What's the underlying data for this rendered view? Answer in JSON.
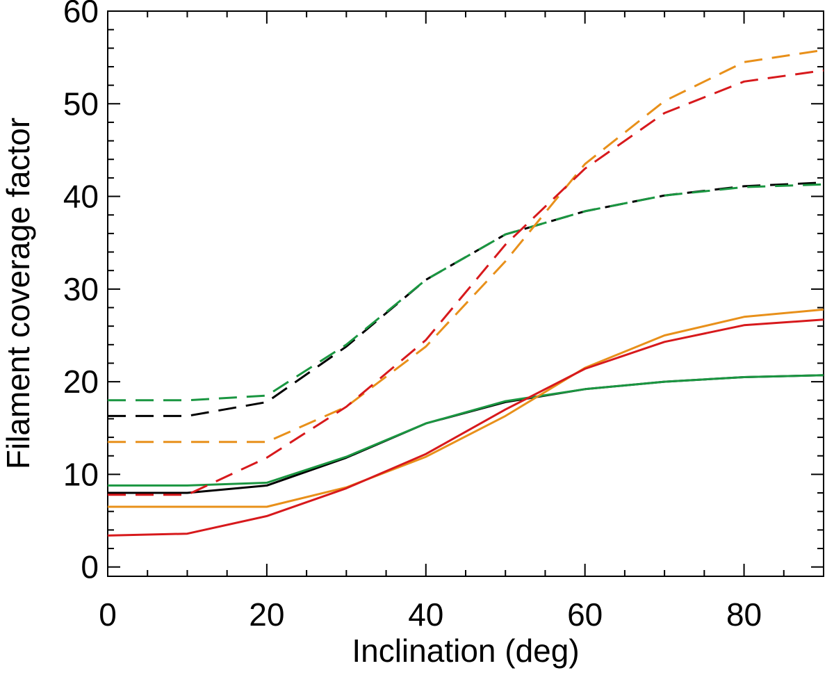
{
  "chart_data": {
    "type": "line",
    "title": "",
    "xlabel": "Inclination (deg)",
    "ylabel": "Filament coverage factor",
    "xlim": [
      0,
      90
    ],
    "ylim": [
      -1,
      60
    ],
    "xticks": [
      0,
      20,
      40,
      60,
      80
    ],
    "xtick_labels": [
      "0",
      "20",
      "40",
      "60",
      "80"
    ],
    "yticks": [
      0,
      10,
      20,
      30,
      40,
      50,
      60
    ],
    "ytick_labels": [
      "0",
      "10",
      "20",
      "30",
      "40",
      "50",
      "60"
    ],
    "x": [
      0,
      10,
      20,
      30,
      40,
      50,
      60,
      70,
      80,
      90
    ],
    "series": [
      {
        "name": "black-solid",
        "color": "#000000",
        "style": "solid",
        "values": [
          8.0,
          8.0,
          8.8,
          11.8,
          15.5,
          17.8,
          19.2,
          20.0,
          20.5,
          20.7
        ]
      },
      {
        "name": "green-solid",
        "color": "#1a9641",
        "style": "solid",
        "values": [
          8.8,
          8.8,
          9.1,
          11.9,
          15.5,
          17.9,
          19.2,
          20.0,
          20.5,
          20.7
        ]
      },
      {
        "name": "orange-solid",
        "color": "#e8901a",
        "style": "solid",
        "values": [
          6.5,
          6.5,
          6.5,
          8.6,
          11.9,
          16.3,
          21.5,
          25.0,
          27.0,
          27.8
        ]
      },
      {
        "name": "red-solid",
        "color": "#d7191c",
        "style": "solid",
        "values": [
          3.4,
          3.6,
          5.5,
          8.5,
          12.2,
          17.0,
          21.4,
          24.3,
          26.1,
          26.7
        ]
      },
      {
        "name": "black-dashed",
        "color": "#000000",
        "style": "dashed",
        "values": [
          16.3,
          16.3,
          17.8,
          23.8,
          31.0,
          35.9,
          38.4,
          40.1,
          41.1,
          41.5
        ]
      },
      {
        "name": "green-dashed",
        "color": "#1a9641",
        "style": "dashed",
        "values": [
          18.0,
          18.0,
          18.5,
          24.0,
          31.0,
          35.9,
          38.4,
          40.1,
          41.0,
          41.3
        ]
      },
      {
        "name": "orange-dashed",
        "color": "#e8901a",
        "style": "dashed",
        "values": [
          13.5,
          13.5,
          13.5,
          17.3,
          23.8,
          33.0,
          43.5,
          50.3,
          54.5,
          55.8
        ]
      },
      {
        "name": "red-dashed",
        "color": "#d7191c",
        "style": "dashed",
        "values": [
          7.8,
          7.8,
          11.8,
          17.3,
          24.5,
          34.8,
          43.0,
          49.0,
          52.4,
          53.6
        ]
      }
    ]
  }
}
